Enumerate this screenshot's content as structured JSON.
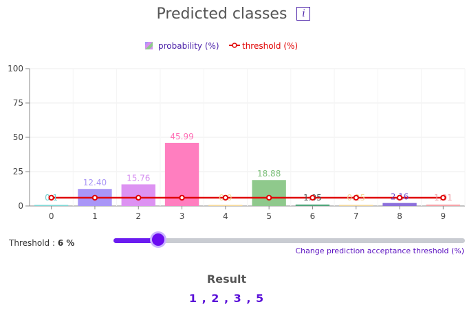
{
  "header": {
    "title": "Predicted classes",
    "info_glyph": "i",
    "info_icon": "info-icon"
  },
  "legend": {
    "probability_label": "probability (%)",
    "threshold_label": "threshold (%)",
    "probability_color": "#4a20a8",
    "threshold_color": "#e00000"
  },
  "chart_data": {
    "type": "bar",
    "categories": [
      "0",
      "1",
      "2",
      "3",
      "4",
      "5",
      "6",
      "7",
      "8",
      "9"
    ],
    "series": [
      {
        "name": "probability (%)",
        "type": "bar",
        "values": [
          0.1,
          12.4,
          15.76,
          45.99,
          0.0,
          18.88,
          1.05,
          0.25,
          2.16,
          1.01
        ],
        "labels": [
          "0.1",
          "12.40",
          "15.76",
          "45.99",
          "0.0",
          "18.88",
          "1.05",
          "0.25",
          "2.16",
          "1.01"
        ],
        "colors": [
          "#7fd8d6",
          "#a996f7",
          "#dd92f2",
          "#ff7ebf",
          "#f6d999",
          "#8fc98c",
          "#4fa67a",
          "#f1d79a",
          "#8c70db",
          "#f5a2a8"
        ],
        "label_colors": [
          "#6fcfcf",
          "#a995f5",
          "#d58ef0",
          "#ff6fb6",
          "#f6d999",
          "#7bbf78",
          "#555555",
          "#f3d59a",
          "#6a48c8",
          "#f0a0a6"
        ]
      },
      {
        "name": "threshold (%)",
        "type": "line",
        "values": [
          6,
          6,
          6,
          6,
          6,
          6,
          6,
          6,
          6,
          6
        ],
        "color": "#e00000"
      }
    ],
    "ylim": [
      0,
      100
    ],
    "yticks": [
      "0",
      "25",
      "50",
      "75",
      "100"
    ],
    "grid": true,
    "legend_position": "top-center"
  },
  "threshold": {
    "label": "Threshold : ",
    "value_text": "6 %",
    "value": 6,
    "caption": "Change prediction acceptance threshold (%)"
  },
  "result": {
    "title": "Result",
    "values": "1 , 2 , 3 , 5"
  }
}
